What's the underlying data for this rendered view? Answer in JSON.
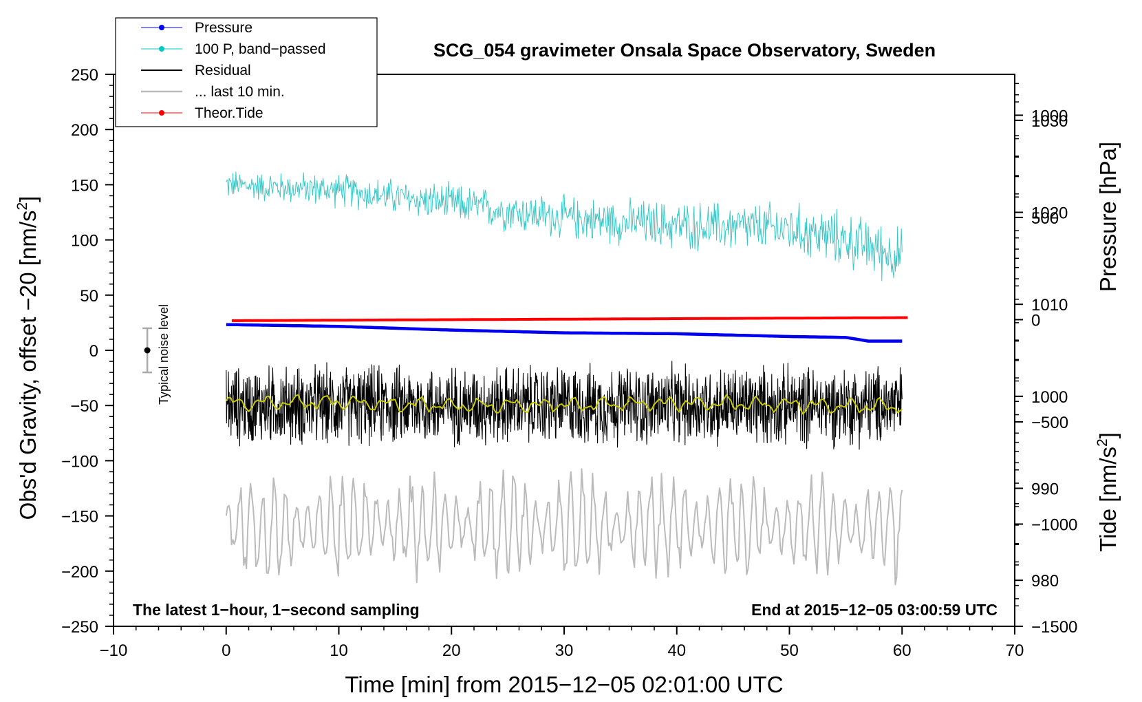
{
  "chart_data": {
    "type": "line",
    "title": "SCG_054 gravimeter Onsala Space Observatory, Sweden",
    "xlabel": "Time [min] from 2015−12−05 02:01:00 UTC",
    "ylabel_left": "Obs'd Gravity, offset −20 [nm/s",
    "ylabel_left_sup": "2",
    "ylabel_left_end": "]",
    "ylabel_pressure": "Pressure [hPa]",
    "ylabel_tide": "Tide [nm/s",
    "ylabel_tide_sup": "2",
    "ylabel_tide_end": "]",
    "xlim": [
      -10,
      70
    ],
    "ylim_left": [
      -250,
      250
    ],
    "pressure_range": [
      975,
      1035
    ],
    "tide_range": [
      -1500,
      1200
    ],
    "x_ticks": [
      "−10",
      "0",
      "10",
      "20",
      "30",
      "40",
      "50",
      "60",
      "70"
    ],
    "x_tick_values": [
      -10,
      0,
      10,
      20,
      30,
      40,
      50,
      60,
      70
    ],
    "y_left_ticks": [
      "250",
      "200",
      "150",
      "100",
      "50",
      "0",
      "−50",
      "−100",
      "−150",
      "−200",
      "−250"
    ],
    "y_left_tick_values": [
      250,
      200,
      150,
      100,
      50,
      0,
      -50,
      -100,
      -150,
      -200,
      -250
    ],
    "y_pressure_ticks": [
      "1030",
      "1020",
      "1010",
      "1000",
      "990",
      "980"
    ],
    "y_pressure_tick_values": [
      1030,
      1020,
      1010,
      1000,
      990,
      980
    ],
    "y_tide_ticks": [
      "1000",
      "500",
      "0",
      "−500",
      "−1000",
      "−1500"
    ],
    "y_tide_tick_values": [
      1000,
      500,
      0,
      -500,
      -1000,
      -1500
    ],
    "annotations": {
      "bottom_left": "The latest 1−hour, 1−second sampling",
      "bottom_right": "End at 2015−12−05 03:00:59 UTC",
      "noise_label": "Typical noise level"
    },
    "noise_bar": {
      "x": -7,
      "center": 0,
      "half_range": 20
    },
    "legend": [
      {
        "label": "Pressure",
        "color": "#0000ff",
        "marker": true
      },
      {
        "label": "100 P, band−passed",
        "color": "#00c8c8",
        "marker": true
      },
      {
        "label": "Residual",
        "color": "#000000",
        "marker": false
      },
      {
        "label": "... last 10 min.",
        "color": "#bbbbbb",
        "marker": false
      },
      {
        "label": "Theor.Tide",
        "color": "#ff0000",
        "marker": true
      }
    ],
    "series": [
      {
        "name": "Pressure",
        "axis": "pressure",
        "color": "#0000ee",
        "x": [
          0,
          10,
          20,
          30,
          40,
          50,
          55,
          57,
          60
        ],
        "y": [
          1007.8,
          1007.6,
          1007.2,
          1006.9,
          1006.8,
          1006.5,
          1006.4,
          1006.0,
          1006.0
        ]
      },
      {
        "name": "100 P, band-passed",
        "axis": "left",
        "color": "#3cc8c8",
        "x": [
          0,
          10,
          20,
          30,
          40,
          50,
          55,
          60
        ],
        "y": [
          150,
          145,
          133,
          120,
          113,
          110,
          100,
          85
        ],
        "amplitude": 12
      },
      {
        "name": "Residual",
        "axis": "left",
        "color": "#000000",
        "x": [
          0,
          60
        ],
        "y": [
          -50,
          -50
        ],
        "amplitude": 28
      },
      {
        "name": "Residual smoothed",
        "axis": "left",
        "color": "#c8c800",
        "x": [
          0,
          10,
          20,
          30,
          40,
          50,
          60
        ],
        "y": [
          -48,
          -47,
          -50,
          -49,
          -48,
          -49,
          -51
        ]
      },
      {
        "name": "... last 10 min.",
        "axis": "left",
        "color": "#bbbbbb",
        "x": [
          0,
          60
        ],
        "y": [
          -160,
          -160
        ],
        "amplitude": 28
      },
      {
        "name": "Theor.Tide",
        "axis": "tide",
        "color": "#ff0000",
        "x": [
          0.5,
          60.5
        ],
        "y": [
          -5,
          10
        ]
      }
    ]
  }
}
